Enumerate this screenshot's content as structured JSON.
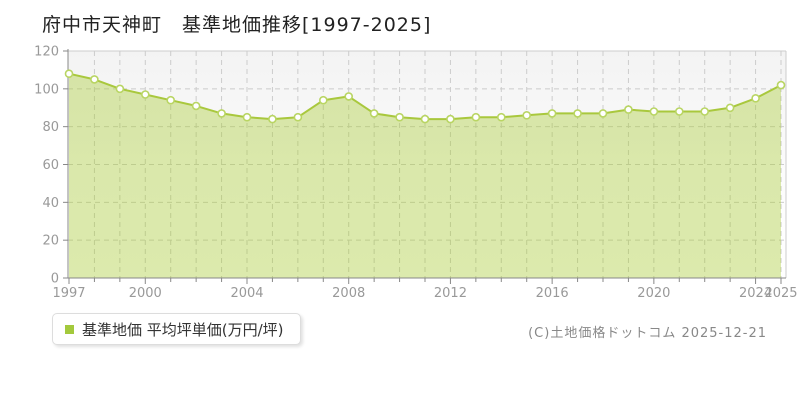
{
  "title": "府中市天神町　基準地価推移[1997-2025]",
  "legend": {
    "label": "基準地価 平均坪単価(万円/坪)",
    "marker_color": "#a3c93c"
  },
  "footer": {
    "copyright": "(C)土地価格ドットコム 2025-12-21"
  },
  "chart_data": {
    "type": "area",
    "title": "府中市天神町 基準地価推移[1997-2025]",
    "x": [
      1997,
      1998,
      1999,
      2000,
      2001,
      2002,
      2003,
      2004,
      2005,
      2006,
      2007,
      2008,
      2009,
      2010,
      2011,
      2012,
      2013,
      2014,
      2015,
      2016,
      2017,
      2018,
      2019,
      2020,
      2021,
      2022,
      2023,
      2024,
      2025
    ],
    "series": [
      {
        "name": "基準地価 平均坪単価(万円/坪)",
        "values": [
          108,
          105,
          100,
          97,
          94,
          91,
          87,
          85,
          84,
          85,
          94,
          96,
          87,
          85,
          84,
          84,
          85,
          85,
          86,
          87,
          87,
          87,
          89,
          88,
          88,
          88,
          90,
          95,
          102
        ]
      }
    ],
    "xlabel": "",
    "ylabel": "",
    "ylim": [
      0,
      120
    ],
    "yticks": [
      0,
      20,
      40,
      60,
      80,
      100,
      120
    ],
    "xtick_labels": [
      1997,
      2000,
      2004,
      2008,
      2012,
      2016,
      2020,
      2024,
      2025
    ],
    "grid": true,
    "legend_position": "bottom-left",
    "colors": {
      "line": "#a9c83d",
      "fill": "rgba(172,204,60,0.42)",
      "marker_fill": "#ffffff",
      "marker_stroke": "#b9d563",
      "grid": "#cccccc",
      "axis": "#888888",
      "border": "#cccccc",
      "tick_label": "#999999",
      "plot_bg_top": "#f3f3f3",
      "plot_bg_bottom": "#ffffff"
    }
  }
}
